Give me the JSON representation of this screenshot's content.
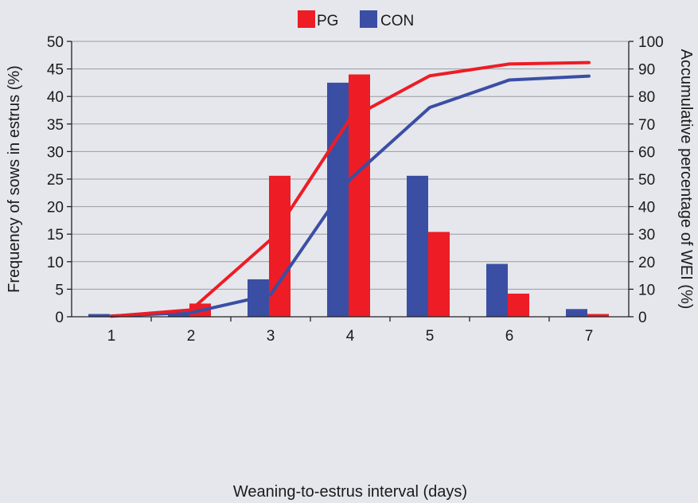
{
  "chart_data": {
    "type": "bar",
    "categories": [
      "1",
      "2",
      "3",
      "4",
      "5",
      "6",
      "7"
    ],
    "xlabel": "Weaning-to-estrus interval (days)",
    "ylabel": "Frequency of sows in estrus (%)",
    "y2label": "Accumulative percentage of WEI (%)",
    "ylim": [
      0,
      50
    ],
    "y2lim": [
      0,
      100
    ],
    "yticks": [
      "0",
      "5",
      "10",
      "15",
      "20",
      "25",
      "30",
      "35",
      "40",
      "45",
      "50"
    ],
    "y2ticks": [
      "0",
      "10",
      "20",
      "30",
      "40",
      "50",
      "60",
      "70",
      "80",
      "90",
      "100"
    ],
    "grid": true,
    "legend_position": "top-center",
    "series": [
      {
        "name": "CON",
        "type": "bar",
        "axis": "left",
        "color": "#3a4fa3",
        "values": [
          0.5,
          0.7,
          6.8,
          42.5,
          25.6,
          9.6,
          1.4
        ]
      },
      {
        "name": "PG",
        "type": "bar",
        "axis": "left",
        "color": "#ee1c25",
        "values": [
          0,
          2.4,
          25.6,
          44.0,
          15.4,
          4.2,
          0.5
        ]
      },
      {
        "name": "CON",
        "type": "line",
        "axis": "right",
        "color": "#3a4fa3",
        "values": [
          0.3,
          1.5,
          8,
          50,
          76,
          86,
          87.4
        ]
      },
      {
        "name": "PG",
        "type": "line",
        "axis": "right",
        "color": "#ee1c25",
        "values": [
          0.2,
          2.5,
          28,
          72,
          87.5,
          91.8,
          92.3
        ]
      }
    ]
  },
  "legend": [
    {
      "label": "PG",
      "color": "#ee1c25"
    },
    {
      "label": "CON",
      "color": "#3a4fa3"
    }
  ]
}
